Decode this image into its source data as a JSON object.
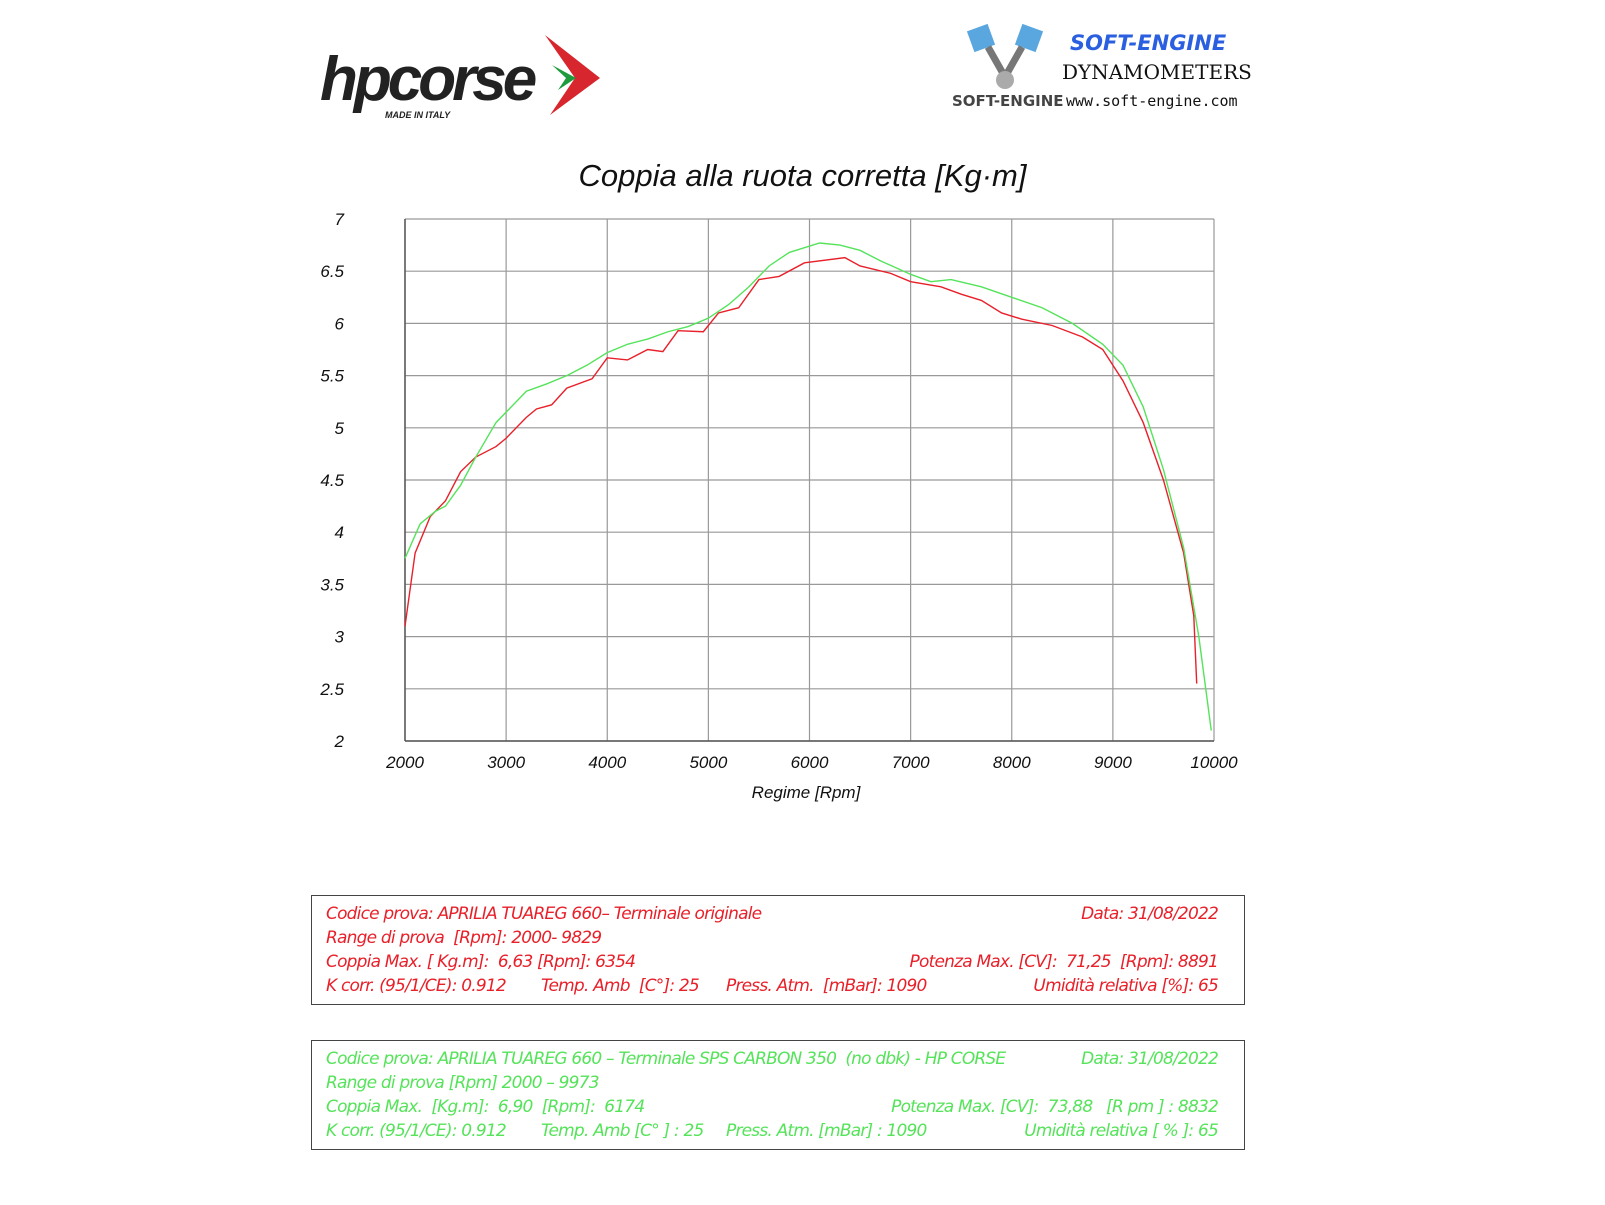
{
  "logos": {
    "left": {
      "text": "hpcorse",
      "sub": "MADE IN ITALY"
    },
    "right": {
      "brand": "SOFT-ENGINE",
      "line1": "DYNAMOMETERS",
      "line2": "www.soft-engine.com",
      "mark": "SOFT-ENGINE"
    }
  },
  "chart_data": {
    "type": "line",
    "title": "Coppia alla ruota corretta [Kg·m]",
    "xlabel": "Regime [Rpm]",
    "ylabel": "",
    "xlim": [
      2000,
      10000
    ],
    "ylim": [
      2,
      7
    ],
    "xticks": [
      "2000",
      "3000",
      "4000",
      "5000",
      "6000",
      "7000",
      "8000",
      "9000",
      "10000"
    ],
    "yticks": [
      "2",
      "2.5",
      "3",
      "3.5",
      "4",
      "4.5",
      "5",
      "5.5",
      "6",
      "6.5",
      "7"
    ],
    "grid": true,
    "series": [
      {
        "color": "#e8202a",
        "points": [
          [
            2000,
            3.1
          ],
          [
            2100,
            3.8
          ],
          [
            2250,
            4.15
          ],
          [
            2400,
            4.3
          ],
          [
            2550,
            4.58
          ],
          [
            2700,
            4.72
          ],
          [
            2900,
            4.82
          ],
          [
            3000,
            4.9
          ],
          [
            3200,
            5.1
          ],
          [
            3300,
            5.18
          ],
          [
            3450,
            5.22
          ],
          [
            3600,
            5.38
          ],
          [
            3850,
            5.47
          ],
          [
            4000,
            5.67
          ],
          [
            4200,
            5.65
          ],
          [
            4400,
            5.75
          ],
          [
            4550,
            5.73
          ],
          [
            4700,
            5.93
          ],
          [
            4950,
            5.92
          ],
          [
            5100,
            6.1
          ],
          [
            5300,
            6.15
          ],
          [
            5500,
            6.42
          ],
          [
            5700,
            6.45
          ],
          [
            5950,
            6.58
          ],
          [
            6350,
            6.63
          ],
          [
            6500,
            6.55
          ],
          [
            6800,
            6.48
          ],
          [
            7000,
            6.4
          ],
          [
            7300,
            6.35
          ],
          [
            7500,
            6.28
          ],
          [
            7700,
            6.22
          ],
          [
            7900,
            6.1
          ],
          [
            8100,
            6.04
          ],
          [
            8400,
            5.98
          ],
          [
            8700,
            5.87
          ],
          [
            8900,
            5.75
          ],
          [
            9100,
            5.45
          ],
          [
            9300,
            5.05
          ],
          [
            9500,
            4.5
          ],
          [
            9700,
            3.8
          ],
          [
            9800,
            3.2
          ],
          [
            9829,
            2.55
          ]
        ]
      },
      {
        "color": "#55e35a",
        "points": [
          [
            2000,
            3.75
          ],
          [
            2150,
            4.08
          ],
          [
            2300,
            4.2
          ],
          [
            2400,
            4.25
          ],
          [
            2550,
            4.45
          ],
          [
            2700,
            4.72
          ],
          [
            2900,
            5.05
          ],
          [
            3000,
            5.15
          ],
          [
            3200,
            5.35
          ],
          [
            3400,
            5.42
          ],
          [
            3600,
            5.5
          ],
          [
            3800,
            5.6
          ],
          [
            4000,
            5.72
          ],
          [
            4200,
            5.8
          ],
          [
            4400,
            5.85
          ],
          [
            4600,
            5.92
          ],
          [
            4800,
            5.97
          ],
          [
            5000,
            6.05
          ],
          [
            5200,
            6.18
          ],
          [
            5400,
            6.35
          ],
          [
            5600,
            6.55
          ],
          [
            5800,
            6.68
          ],
          [
            6100,
            6.77
          ],
          [
            6300,
            6.75
          ],
          [
            6500,
            6.7
          ],
          [
            6700,
            6.6
          ],
          [
            7000,
            6.47
          ],
          [
            7200,
            6.4
          ],
          [
            7400,
            6.42
          ],
          [
            7700,
            6.35
          ],
          [
            8000,
            6.25
          ],
          [
            8300,
            6.15
          ],
          [
            8600,
            6.0
          ],
          [
            8900,
            5.8
          ],
          [
            9100,
            5.6
          ],
          [
            9300,
            5.2
          ],
          [
            9500,
            4.6
          ],
          [
            9700,
            3.85
          ],
          [
            9850,
            3.0
          ],
          [
            9973,
            2.1
          ]
        ]
      }
    ]
  },
  "boxes": [
    {
      "color": "#e8202a",
      "rows": [
        [
          "Codice prova: APRILIA TUAREG 660– Terminale originale",
          "Data: 31/08/2022"
        ],
        [
          "Range di prova  [Rpm]: 2000- 9829"
        ],
        [
          "Coppia Max. [ Kg.m]:  6,63 [Rpm]: 6354",
          "Potenza Max. [CV]:  71,25  [Rpm]: 8891"
        ],
        [
          "K corr. (95/1/CE): 0.912",
          "Temp. Amb  [C°]: 25",
          "Press. Atm.  [mBar]: 1090",
          "Umidità relativa [%]: 65"
        ]
      ]
    },
    {
      "color": "#55e35a",
      "rows": [
        [
          "Codice prova: APRILIA TUAREG 660 – Terminale SPS CARBON 350  (no dbk) - HP CORSE",
          "Data: 31/08/2022"
        ],
        [
          "Range di prova [Rpm] 2000 – 9973"
        ],
        [
          "Coppia Max.  [Kg.m]:  6,90  [Rpm]:  6174",
          "Potenza Max. [CV]:  73,88   [R pm ] : 8832"
        ],
        [
          "K corr. (95/1/CE): 0.912",
          "Temp. Amb [C° ] : 25",
          "Press. Atm. [mBar] : 1090",
          "Umidità relativa [ % ]: 65"
        ]
      ]
    }
  ]
}
